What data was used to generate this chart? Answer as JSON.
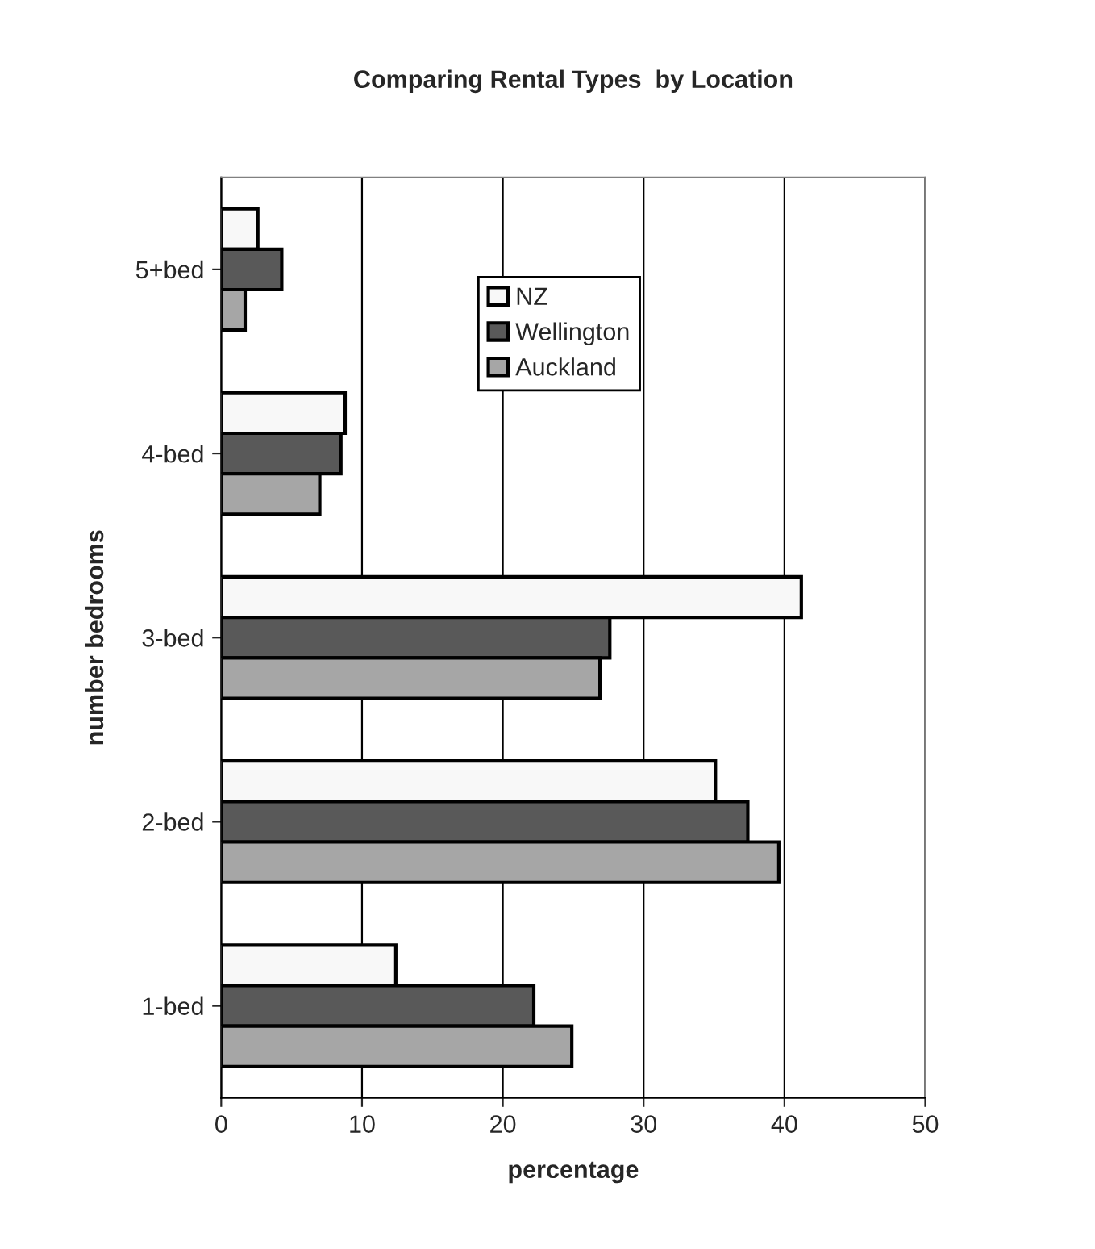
{
  "chart_data": {
    "type": "bar",
    "orientation": "horizontal",
    "title": "Comparing Rental Types  by Location",
    "xlabel": "percentage",
    "ylabel": "number bedrooms",
    "categories": [
      "5+bed",
      "4-bed",
      "3-bed",
      "2-bed",
      "1-bed"
    ],
    "series": [
      {
        "name": "NZ",
        "color": "#f8f8f8",
        "values": [
          2.6,
          8.8,
          41.2,
          35.1,
          12.4
        ]
      },
      {
        "name": "Wellington",
        "color": "#595959",
        "values": [
          4.3,
          8.5,
          27.6,
          37.4,
          22.2
        ]
      },
      {
        "name": "Auckland",
        "color": "#a6a6a6",
        "values": [
          1.7,
          7.0,
          26.9,
          39.6,
          24.9
        ]
      }
    ],
    "xlim": [
      0,
      50
    ],
    "xticks": [
      0,
      10,
      20,
      30,
      40,
      50
    ],
    "grid": "x",
    "legend": "top"
  }
}
